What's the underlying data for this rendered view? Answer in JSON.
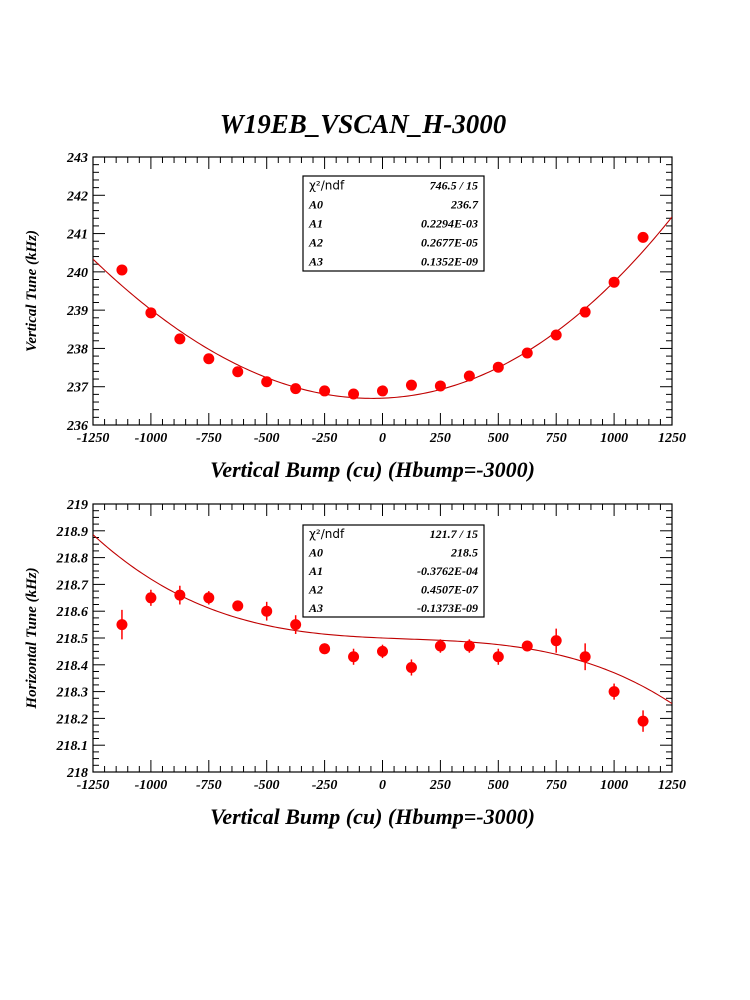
{
  "page_title": "W19EB_VSCAN_H-3000",
  "colors": {
    "marker": "#ff0000",
    "fit_line": "#c00000",
    "axis": "#000000",
    "background": "#ffffff"
  },
  "chart_data": [
    {
      "type": "scatter",
      "id": "vertical",
      "xlabel": "Vertical Bump (cu) (Hbump=-3000)",
      "ylabel": "Vertical Tune (kHz)",
      "xlim": [
        -1250,
        1250
      ],
      "ylim": [
        236,
        243
      ],
      "xticks": [
        -1250,
        -1000,
        -750,
        -500,
        -250,
        0,
        250,
        500,
        750,
        1000,
        1250
      ],
      "xtick_labels": [
        "-1250",
        "-1000",
        "-750",
        "-500",
        "-250",
        "0",
        "250",
        "500",
        "750",
        "1000",
        "1250"
      ],
      "yticks": [
        236,
        237,
        238,
        239,
        240,
        241,
        242,
        243
      ],
      "ytick_labels": [
        "236",
        "237",
        "238",
        "239",
        "240",
        "241",
        "242",
        "243"
      ],
      "y_minor_per_major": 5,
      "x_minor_per_major": 5,
      "grid": false,
      "x": [
        -1125,
        -1000,
        -875,
        -750,
        -625,
        -500,
        -375,
        -250,
        -125,
        0,
        125,
        250,
        375,
        500,
        625,
        750,
        875,
        1000,
        1125
      ],
      "y": [
        240.05,
        238.93,
        238.25,
        237.73,
        237.39,
        237.13,
        236.95,
        236.89,
        236.81,
        236.89,
        237.04,
        237.02,
        237.28,
        237.51,
        237.88,
        238.35,
        238.95,
        239.73,
        240.9
      ],
      "yerr": [
        0.02,
        0.02,
        0.02,
        0.02,
        0.02,
        0.02,
        0.02,
        0.02,
        0.02,
        0.02,
        0.02,
        0.02,
        0.02,
        0.02,
        0.02,
        0.02,
        0.02,
        0.02,
        0.02
      ],
      "fit": {
        "model": "A0 + A1*x + A2*x^2 + A3*x^3",
        "A0": 236.7,
        "A1": 0.0002294,
        "A2": 2.677e-06,
        "A3": 1.352e-10
      },
      "stats_box": {
        "rows": [
          {
            "label": "χ²/ndf",
            "value": "746.5   /   15"
          },
          {
            "label": "A0",
            "value": "236.7"
          },
          {
            "label": "A1",
            "value": "0.2294E-03"
          },
          {
            "label": "A2",
            "value": "0.2677E-05"
          },
          {
            "label": "A3",
            "value": "0.1352E-09"
          }
        ],
        "placement": "top-center"
      }
    },
    {
      "type": "scatter",
      "id": "horizontal",
      "xlabel": "Vertical Bump (cu) (Hbump=-3000)",
      "ylabel": "Horizontal Tune (kHz)",
      "xlim": [
        -1250,
        1250
      ],
      "ylim": [
        218,
        219
      ],
      "xticks": [
        -1250,
        -1000,
        -750,
        -500,
        -250,
        0,
        250,
        500,
        750,
        1000,
        1250
      ],
      "xtick_labels": [
        "-1250",
        "-1000",
        "-750",
        "-500",
        "-250",
        "0",
        "250",
        "500",
        "750",
        "1000",
        "1250"
      ],
      "yticks": [
        218,
        218.1,
        218.2,
        218.3,
        218.4,
        218.5,
        218.6,
        218.7,
        218.8,
        218.9,
        219
      ],
      "ytick_labels": [
        "218",
        "218.1",
        "218.2",
        "218.3",
        "218.4",
        "218.5",
        "218.6",
        "218.7",
        "218.8",
        "218.9",
        "219"
      ],
      "y_minor_per_major": 2,
      "x_minor_per_major": 5,
      "grid": false,
      "x": [
        -1125,
        -1000,
        -875,
        -750,
        -625,
        -500,
        -375,
        -250,
        -125,
        0,
        125,
        250,
        375,
        500,
        625,
        750,
        875,
        1000,
        1125
      ],
      "y": [
        218.55,
        218.65,
        218.66,
        218.65,
        218.62,
        218.6,
        218.55,
        218.46,
        218.43,
        218.45,
        218.39,
        218.47,
        218.47,
        218.43,
        218.47,
        218.49,
        218.43,
        218.3,
        218.19
      ],
      "yerr": [
        0.055,
        0.03,
        0.035,
        0.025,
        0.02,
        0.035,
        0.035,
        0.02,
        0.03,
        0.025,
        0.03,
        0.025,
        0.025,
        0.03,
        0.02,
        0.045,
        0.05,
        0.03,
        0.04
      ],
      "fit": {
        "model": "A0 + A1*x + A2*x^2 + A3*x^3",
        "A0": 218.5,
        "A1": -3.762e-05,
        "A2": 4.507e-08,
        "A3": -1.373e-10
      },
      "stats_box": {
        "rows": [
          {
            "label": "χ²/ndf",
            "value": "121.7   /   15"
          },
          {
            "label": "A0",
            "value": "218.5"
          },
          {
            "label": "A1",
            "value": "-0.3762E-04"
          },
          {
            "label": "A2",
            "value": "0.4507E-07"
          },
          {
            "label": "A3",
            "value": "-0.1373E-09"
          }
        ],
        "placement": "top-center"
      }
    }
  ]
}
